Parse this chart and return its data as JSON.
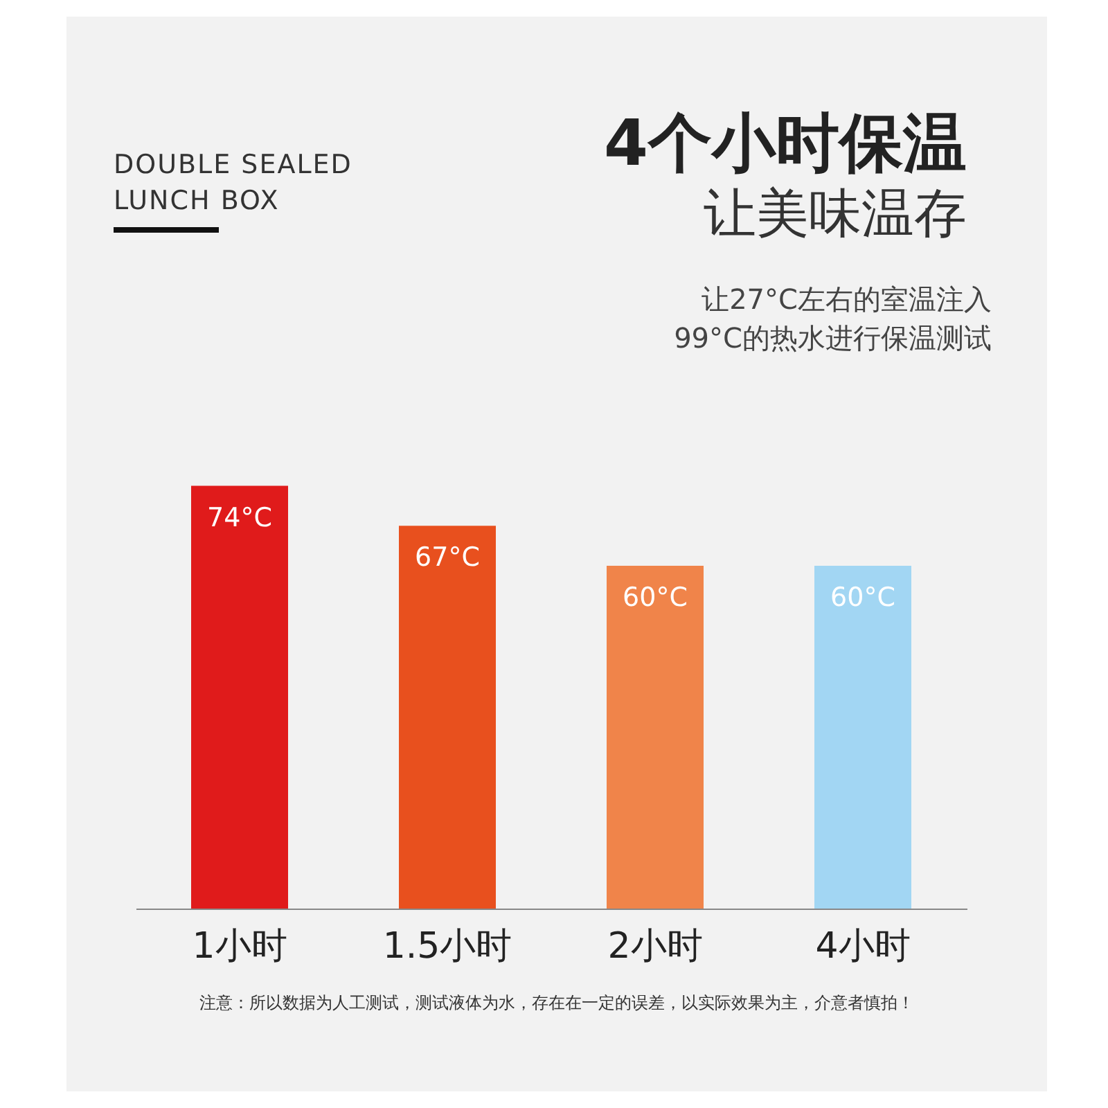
{
  "chart_data": {
    "type": "bar",
    "title": "4个小时保温",
    "subtitle": "让美味温存",
    "annotations": [
      "DOUBLE SEALED\nLUNCH BOX",
      "让27°C左右的室温注入\n99°C的热水进行保温测试",
      "注意：所以数据为人工测试，测试液体为水，存在在一定的误差，以实际效果为主，介意者慎拍！"
    ],
    "categories": [
      "1小时",
      "1.5小时",
      "2小时",
      "4小时"
    ],
    "values": [
      74,
      67,
      60,
      60
    ],
    "colors": [
      "#e01b1b",
      "#e8501e",
      "#f0844a",
      "#a2d6f3"
    ],
    "value_labels": [
      "74°C",
      "67°C",
      "60°C",
      "60°C"
    ],
    "grid": false,
    "legend": false
  }
}
